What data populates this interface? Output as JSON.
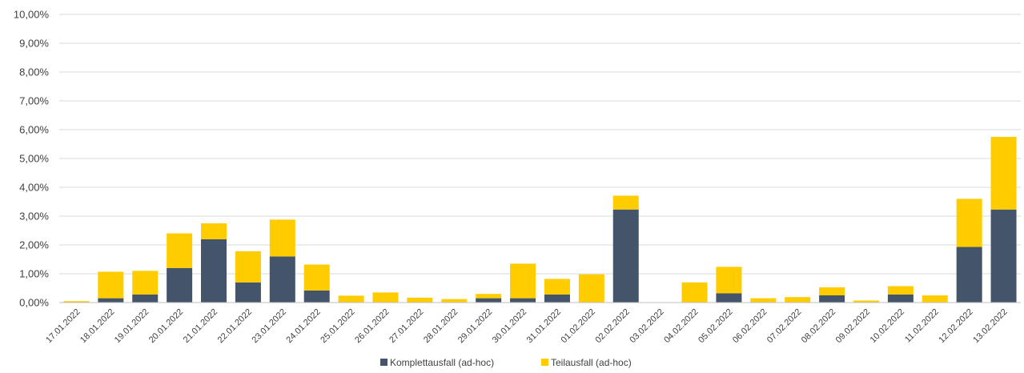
{
  "chart_data": {
    "type": "bar",
    "stacked": true,
    "categories": [
      "17.01.2022",
      "18.01.2022",
      "19.01.2022",
      "20.01.2022",
      "21.01.2022",
      "22.01.2022",
      "23.01.2022",
      "24.01.2022",
      "25.01.2022",
      "26.01.2022",
      "27.01.2022",
      "28.01.2022",
      "29.01.2022",
      "30.01.2022",
      "31.01.2022",
      "01.02.2022",
      "02.02.2022",
      "03.02.2022",
      "04.02.2022",
      "05.02.2022",
      "06.02.2022",
      "07.02.2022",
      "08.02.2022",
      "09.02.2022",
      "10.02.2022",
      "11.02.2022",
      "12.02.2022",
      "13.02.2022"
    ],
    "series": [
      {
        "name": "Komplettausfall (ad-hoc)",
        "color": "#44546A",
        "values": [
          0.0,
          0.15,
          0.28,
          1.2,
          2.2,
          0.7,
          1.6,
          0.42,
          0.0,
          0.0,
          0.0,
          0.0,
          0.15,
          0.15,
          0.28,
          0.0,
          3.23,
          0.0,
          0.0,
          0.32,
          0.0,
          0.0,
          0.25,
          0.0,
          0.28,
          0.0,
          1.93,
          3.23
        ]
      },
      {
        "name": "Teilausfall (ad-hoc)",
        "color": "#FFCC00",
        "values": [
          0.05,
          0.92,
          0.82,
          1.2,
          0.55,
          1.08,
          1.28,
          0.9,
          0.24,
          0.35,
          0.17,
          0.12,
          0.15,
          1.2,
          0.54,
          0.98,
          0.48,
          0.0,
          0.7,
          0.92,
          0.15,
          0.19,
          0.28,
          0.07,
          0.29,
          0.25,
          1.67,
          2.52
        ]
      }
    ],
    "ylim": [
      0,
      10
    ],
    "yticks": [
      "0,00%",
      "1,00%",
      "2,00%",
      "3,00%",
      "4,00%",
      "5,00%",
      "6,00%",
      "7,00%",
      "8,00%",
      "9,00%",
      "10,00%"
    ],
    "grid": true,
    "legend_position": "bottom"
  }
}
